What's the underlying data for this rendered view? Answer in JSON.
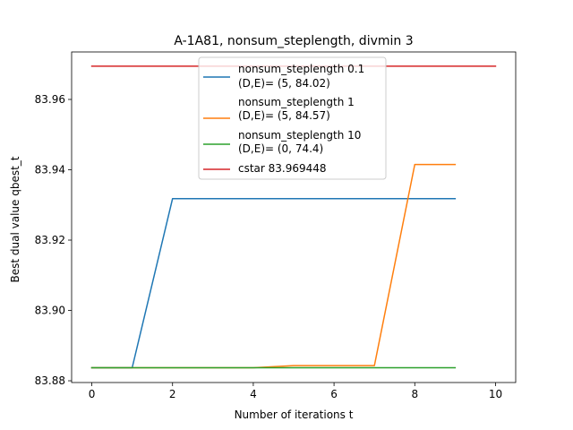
{
  "chart_data": {
    "type": "line",
    "title": "A-1A81, nonsum_steplength, divmin 3",
    "xlabel": "Number of iterations t",
    "ylabel": "Best dual value qbest_t",
    "xlim": [
      -0.5,
      10.5
    ],
    "ylim": [
      83.8795,
      83.9735
    ],
    "xticks": [
      0,
      2,
      4,
      6,
      8,
      10
    ],
    "yticks": [
      83.88,
      83.9,
      83.92,
      83.94,
      83.96
    ],
    "xtick_labels": [
      "0",
      "2",
      "4",
      "6",
      "8",
      "10"
    ],
    "ytick_labels": [
      "83.88",
      "83.90",
      "83.92",
      "83.94",
      "83.96"
    ],
    "grid": false,
    "legend_position": "top-center",
    "series": [
      {
        "name": "nonsum_steplength 0.1",
        "name_line2": "(D,E)= (5, 84.02)",
        "color": "#1f77b4",
        "x": [
          0,
          1,
          2,
          3,
          4,
          5,
          6,
          7,
          8,
          9
        ],
        "y": [
          83.8837,
          83.8837,
          83.9318,
          83.9318,
          83.9318,
          83.9318,
          83.9318,
          83.9318,
          83.9318,
          83.9318
        ]
      },
      {
        "name": "nonsum_steplength 1",
        "name_line2": "(D,E)= (5, 84.57)",
        "color": "#ff7f0e",
        "x": [
          0,
          1,
          2,
          3,
          4,
          5,
          6,
          7,
          8,
          9
        ],
        "y": [
          83.8837,
          83.8837,
          83.8837,
          83.8837,
          83.8837,
          83.8843,
          83.8843,
          83.8843,
          83.9415,
          83.9415
        ]
      },
      {
        "name": "nonsum_steplength 10",
        "name_line2": "(D,E)= (0, 74.4)",
        "color": "#2ca02c",
        "x": [
          0,
          1,
          2,
          3,
          4,
          5,
          6,
          7,
          8,
          9
        ],
        "y": [
          83.8837,
          83.8837,
          83.8837,
          83.8837,
          83.8837,
          83.8837,
          83.8837,
          83.8837,
          83.8837,
          83.8837
        ]
      },
      {
        "name": "cstar 83.969448",
        "name_line2": "",
        "color": "#d62728",
        "x": [
          0,
          10
        ],
        "y": [
          83.969448,
          83.969448
        ]
      }
    ]
  }
}
